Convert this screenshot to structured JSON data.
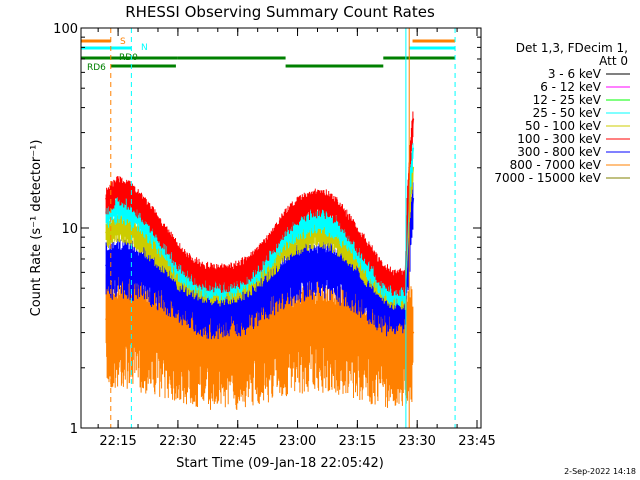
{
  "chart_data": {
    "type": "line",
    "title": "RHESSI Observing Summary Count Rates",
    "xlabel": "Start Time (09-Jan-18 22:05:42)",
    "ylabel": "Count Rate (s⁻¹ detector⁻¹)",
    "xlim": [
      "22:05:42",
      "23:46:00"
    ],
    "ylim": [
      1,
      100
    ],
    "yscale": "log",
    "x_ticks": [
      "22:15",
      "22:30",
      "22:45",
      "23:00",
      "23:15",
      "23:30",
      "23:45"
    ],
    "y_ticks": [
      "1",
      "10",
      "100"
    ],
    "legend": {
      "placement": "right",
      "header": [
        "Det 1,3, FDecim 1,",
        "Att 0"
      ],
      "entries": [
        {
          "name": "3 - 6 keV",
          "color": "#000000"
        },
        {
          "name": "6 - 12 keV",
          "color": "#ff00ff"
        },
        {
          "name": "12 - 25 keV",
          "color": "#00ff00"
        },
        {
          "name": "25 - 50 keV",
          "color": "#00ffff"
        },
        {
          "name": "50 - 100 keV",
          "color": "#cccc00"
        },
        {
          "name": "100 - 300 keV",
          "color": "#ff0000"
        },
        {
          "name": "300 - 800 keV",
          "color": "#0000ff"
        },
        {
          "name": "800 - 7000 keV",
          "color": "#ff8000"
        },
        {
          "name": "7000 - 15000 keV",
          "color": "#808000"
        }
      ]
    },
    "x": [
      "22:12",
      "22:15",
      "22:18",
      "22:21",
      "22:24",
      "22:27",
      "22:30",
      "22:33",
      "22:36",
      "22:39",
      "22:42",
      "22:45",
      "22:48",
      "22:51",
      "22:54",
      "22:57",
      "23:00",
      "23:03",
      "23:06",
      "23:09",
      "23:12",
      "23:15",
      "23:18",
      "23:21",
      "23:24",
      "23:27",
      "23:28",
      "23:29"
    ],
    "series": [
      {
        "name": "100 - 300 keV",
        "values": [
          14,
          16,
          15,
          13,
          11,
          9,
          7.5,
          6.5,
          6,
          5.8,
          5.8,
          6,
          6.5,
          7.5,
          9,
          11,
          12.5,
          13.5,
          14,
          13,
          11,
          9,
          7.5,
          6,
          5.5,
          5.5,
          20,
          35
        ]
      },
      {
        "name": "25 - 50 keV",
        "values": [
          12,
          13,
          12.5,
          11,
          9.5,
          8,
          6.5,
          6,
          5.5,
          5.3,
          5.3,
          5.5,
          6,
          6.8,
          8,
          9.5,
          10.5,
          11,
          11.5,
          10.5,
          9.5,
          8,
          6.5,
          5.5,
          5,
          5,
          15,
          25
        ]
      },
      {
        "name": "50 - 100 keV",
        "values": [
          9.5,
          10.5,
          10,
          9,
          8,
          7,
          6,
          5.5,
          5.2,
          5,
          5,
          5.2,
          5.5,
          6.2,
          7,
          8.2,
          9,
          9.5,
          9.8,
          9.2,
          8.2,
          7,
          6,
          5.2,
          4.8,
          4.8,
          12,
          20
        ]
      },
      {
        "name": "300 - 800 keV",
        "values": [
          6.5,
          6.8,
          6.6,
          6.3,
          6,
          5.6,
          5,
          4.6,
          4.3,
          4.2,
          4.2,
          4.3,
          4.5,
          5,
          5.5,
          6,
          6.3,
          6.6,
          6.8,
          6.5,
          6,
          5.5,
          5,
          4.5,
          4.2,
          4.2,
          8,
          14
        ]
      },
      {
        "name": "800 - 7000 keV",
        "values": [
          3.5,
          3.5,
          3.6,
          3.4,
          3.3,
          3.2,
          3,
          2.9,
          2.8,
          2.8,
          2.8,
          2.8,
          2.9,
          3,
          3.1,
          3.2,
          3.3,
          3.4,
          3.4,
          3.3,
          3.2,
          3.1,
          3,
          2.9,
          2.8,
          2.8,
          3,
          3
        ]
      }
    ],
    "flags": {
      "S": {
        "color": "#ff8000",
        "intervals": [
          [
            "22:05:42",
            "22:13:10"
          ],
          [
            "23:28:50",
            "23:39:30"
          ]
        ]
      },
      "N": {
        "color": "#00ffff",
        "intervals": [
          [
            "22:05:42",
            "22:18:20"
          ],
          [
            "23:28:00",
            "23:39:30"
          ]
        ]
      },
      "RD0": {
        "color": "#008000",
        "intervals": [
          [
            "22:05:42",
            "22:30:00"
          ],
          [
            "22:30:00",
            "22:57:00"
          ],
          [
            "23:21:30",
            "23:39:30"
          ]
        ]
      },
      "RD6": {
        "color": "#008000",
        "intervals": [
          [
            "22:13:10",
            "22:29:30"
          ],
          [
            "22:57:00",
            "23:21:30"
          ]
        ]
      }
    },
    "markers": [
      {
        "time": "22:13:10",
        "color": "#ff8000",
        "style": "dashed"
      },
      {
        "time": "22:18:20",
        "color": "#00ffff",
        "style": "dashed"
      },
      {
        "time": "23:27:10",
        "color": "#00ffff",
        "style": "solid"
      },
      {
        "time": "23:28:00",
        "color": "#ff8000",
        "style": "solid"
      },
      {
        "time": "23:39:30",
        "color": "#00ffff",
        "style": "dashed"
      },
      {
        "time": "22:05:42",
        "color": "#00ffff",
        "style": "solid"
      }
    ]
  },
  "footer_stamp": "2-Sep-2022 14:18"
}
